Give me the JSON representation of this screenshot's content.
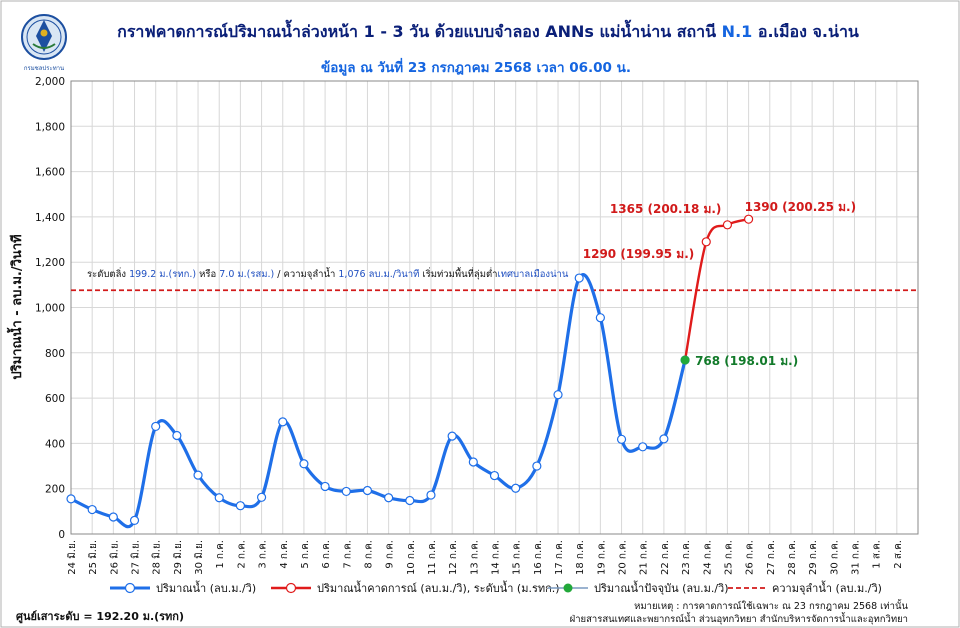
{
  "header": {
    "title": "กราฟคาดการณ์ปริมาณน้ำล่วงหน้า 1 - 3 วัน  ด้วยแบบจำลอง ANNs แม่น้ำน่าน สถานี ",
    "title_station": "N.1",
    "title_suffix": " อ.เมือง จ.น่าน",
    "subtitle": "ข้อมูล ณ วันที่    23 กรกฎาคม 2568    เวลา 06.00 น.",
    "logo_text": "กรมชลประทาน"
  },
  "chart_data": {
    "type": "line",
    "ylabel": "ปริมาณน้ำ  -  ลบ.ม./วินาที",
    "ylim": [
      0,
      2000
    ],
    "yticks": [
      "0",
      "200",
      "400",
      "600",
      "800",
      "1,000",
      "1,200",
      "1,400",
      "1,600",
      "1,800",
      "2,000"
    ],
    "categories": [
      "24 มิ.ย.",
      "25 มิ.ย.",
      "26 มิ.ย.",
      "27 มิ.ย.",
      "28 มิ.ย.",
      "29 มิ.ย.",
      "30 มิ.ย.",
      "1 ก.ค.",
      "2 ก.ค.",
      "3 ก.ค.",
      "4 ก.ค.",
      "5 ก.ค.",
      "6 ก.ค.",
      "7 ก.ค.",
      "8 ก.ค.",
      "9 ก.ค.",
      "10 ก.ค.",
      "11 ก.ค.",
      "12 ก.ค.",
      "13 ก.ค.",
      "14 ก.ค.",
      "15 ก.ค.",
      "16 ก.ค.",
      "17 ก.ค.",
      "18 ก.ค.",
      "19 ก.ค.",
      "20 ก.ค.",
      "21 ก.ค.",
      "22 ก.ค.",
      "23 ก.ค.",
      "24 ก.ค.",
      "25 ก.ค.",
      "26 ก.ค.",
      "27 ก.ค.",
      "28 ก.ค.",
      "29 ก.ค.",
      "30 ก.ค.",
      "31 ก.ค.",
      "1 ส.ค.",
      "2 ส.ค."
    ],
    "grid": true,
    "series": [
      {
        "name": "ปริมาณน้ำ (ลบ.ม./วิ)",
        "color": "#1f6fe8",
        "x": [
          0,
          1,
          2,
          3,
          4,
          5,
          6,
          7,
          8,
          9,
          10,
          11,
          12,
          13,
          14,
          15,
          16,
          17,
          18,
          19,
          20,
          21,
          22,
          23,
          24,
          25,
          26,
          27,
          28,
          29
        ],
        "values": [
          155,
          108,
          75,
          60,
          475,
          435,
          260,
          160,
          125,
          162,
          495,
          310,
          210,
          188,
          192,
          160,
          148,
          172,
          432,
          318,
          258,
          202,
          300,
          615,
          1130,
          955,
          418,
          385,
          420,
          768
        ]
      },
      {
        "name": "ปริมาณน้ำคาดการณ์  (ลบ.ม./วิ), ระดับน้ำ (ม.รทก.)",
        "color": "#e01b1b",
        "x": [
          29,
          30,
          31,
          32
        ],
        "values": [
          768,
          1290,
          1365,
          1390
        ]
      },
      {
        "name": "ปริมาณน้ำปัจจุบัน  (ลบ.ม./วิ)",
        "color": "#22a83a",
        "x": [
          29
        ],
        "values": [
          768
        ]
      }
    ],
    "capacity": {
      "name": "ความจุลำน้ำ  (ลบ.ม./วิ)",
      "value": 1076,
      "color": "#d21a1a"
    },
    "annotations": {
      "current": "768 (198.01 ม.)",
      "f1": "1290 (199.95 ม.)",
      "f2": "1365 (200.18 ม.)",
      "f3": "1390 (200.25 ม.)"
    },
    "bank_text": {
      "p1": "ระดับตลิ่ง  ",
      "p2": "199.2 ม.(รทก.)",
      "p3": "  หรือ  ",
      "p4": "7.0 ม.(รสม.)",
      "p5": "  / ความจุลำน้ำ  ",
      "p6": "1,076 ลบ.ม./วินาที",
      "p7": "   เริ่มท่วมพื้นที่ลุ่มต่ำ",
      "p8": "เทศบาลเมืองน่าน"
    }
  },
  "footer": {
    "datum": "ศูนย์เสาระดับ = 192.20 ม.(รทก)",
    "note_line1": "หมายเหตุ  :  การคาดการณ์ใช้เฉพาะ  ณ    23 กรกฎาคม 2568    เท่านั้น",
    "note_line2": "ฝ่ายสารสนเทศและพยากรณ์น้ำ ส่วนอุทกวิทยา  สำนักบริหารจัดการน้ำและอุทกวิทยา"
  }
}
